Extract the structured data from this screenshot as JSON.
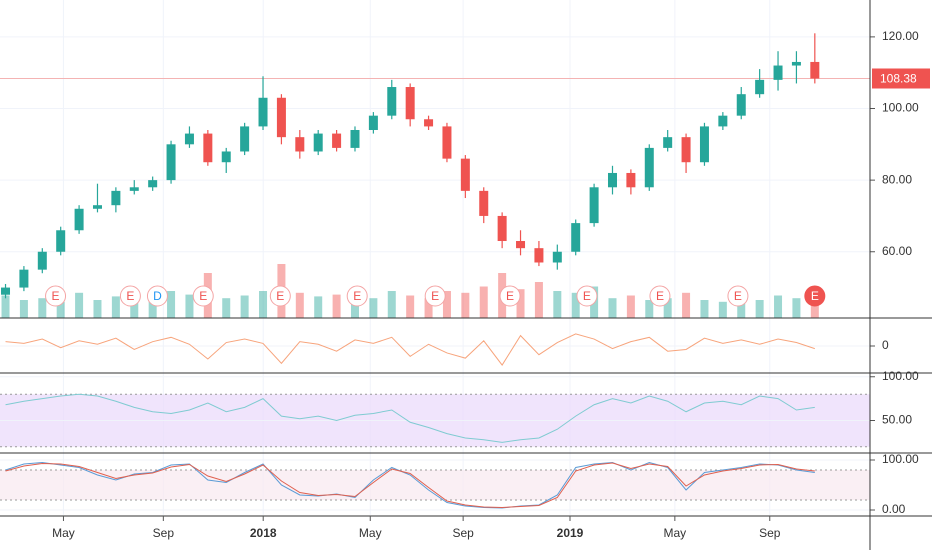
{
  "chart_data": [
    {
      "type": "candlestick",
      "xlim": [
        -0.3,
        47
      ],
      "xticks": [
        {
          "value": 3.15,
          "label": "May"
        },
        {
          "value": 8.58,
          "label": "Sep"
        },
        {
          "value": 14.01,
          "label": "2018"
        },
        {
          "value": 19.83,
          "label": "May"
        },
        {
          "value": 24.88,
          "label": "Sep"
        },
        {
          "value": 30.69,
          "label": "2019"
        },
        {
          "value": 36.39,
          "label": "May"
        },
        {
          "value": 41.55,
          "label": "Sep"
        }
      ],
      "ylim": [
        41.5,
        130.3
      ],
      "yticks": [
        {
          "value": 120,
          "label": "120.00"
        },
        {
          "value": 100,
          "label": "100.00"
        },
        {
          "value": 80,
          "label": "80.00"
        },
        {
          "value": 60,
          "label": "60.00"
        }
      ],
      "up_color": "#26a69a",
      "down_color": "#ef5350",
      "open": [
        48,
        50,
        55,
        60,
        66,
        72,
        73,
        77,
        78,
        80,
        90,
        93,
        85,
        88,
        95,
        103,
        92,
        88,
        93,
        89,
        94,
        98,
        106,
        97,
        95,
        86,
        77,
        70,
        63,
        61,
        57,
        60,
        68,
        78,
        82,
        78,
        89,
        92,
        85,
        95,
        98,
        104,
        108,
        112,
        113
      ],
      "high": [
        51,
        56,
        61,
        67,
        73,
        79,
        78,
        80,
        81,
        91,
        95,
        94,
        89,
        96,
        109,
        104,
        94,
        94,
        94,
        95,
        99,
        108,
        107,
        98,
        96,
        87,
        78,
        71,
        66,
        63,
        62,
        69,
        79,
        84,
        83,
        90,
        94,
        93,
        96,
        99,
        106,
        111,
        116,
        116,
        121
      ],
      "low": [
        47,
        49,
        54,
        59,
        65,
        71,
        71,
        76,
        77,
        79,
        89,
        84,
        82,
        87,
        94,
        90,
        86,
        87,
        88,
        88,
        93,
        97,
        95,
        94,
        85,
        75,
        68,
        61,
        59,
        56,
        55,
        59,
        67,
        76,
        76,
        77,
        88,
        82,
        84,
        94,
        97,
        103,
        105,
        107,
        107
      ],
      "close": [
        50,
        55,
        60,
        66,
        72,
        73,
        77,
        78,
        80,
        90,
        93,
        85,
        88,
        95,
        103,
        92,
        88,
        93,
        89,
        94,
        98,
        106,
        97,
        95,
        86,
        77,
        70,
        63,
        61,
        57,
        60,
        68,
        78,
        82,
        78,
        89,
        92,
        85,
        95,
        98,
        104,
        108,
        112,
        113,
        108.38
      ],
      "volume": [
        25,
        20,
        22,
        18,
        28,
        20,
        24,
        18,
        22,
        30,
        26,
        50,
        22,
        25,
        30,
        60,
        28,
        24,
        26,
        20,
        22,
        30,
        25,
        22,
        30,
        28,
        35,
        50,
        32,
        40,
        30,
        28,
        35,
        22,
        25,
        20,
        22,
        28,
        20,
        18,
        22,
        20,
        25,
        22,
        30
      ],
      "last_price": 108.38,
      "events": [
        {
          "label": "E",
          "x": 2.72
        },
        {
          "label": "E",
          "x": 6.79
        },
        {
          "label": "D",
          "x": 8.26
        },
        {
          "label": "E",
          "x": 10.75
        },
        {
          "label": "E",
          "x": 14.94
        },
        {
          "label": "E",
          "x": 19.12
        },
        {
          "label": "E",
          "x": 23.36
        },
        {
          "label": "E",
          "x": 27.43
        },
        {
          "label": "E",
          "x": 31.61
        },
        {
          "label": "E",
          "x": 35.58
        },
        {
          "label": "E",
          "x": 39.82
        },
        {
          "label": "E",
          "x": 44.0,
          "filled": true
        }
      ]
    },
    {
      "type": "line",
      "ylim": [
        -3,
        3
      ],
      "yticks": [
        0
      ],
      "series": [
        {
          "color": "#f7a47c",
          "values": [
            0.5,
            0.3,
            0.8,
            -0.2,
            0.6,
            0.2,
            0.9,
            -0.4,
            0.5,
            1.0,
            0.2,
            -1.5,
            0.4,
            0.8,
            0.3,
            -2.0,
            0.5,
            0.2,
            -0.6,
            0.7,
            0.3,
            1.0,
            -1.2,
            0.2,
            -0.8,
            -1.4,
            0.6,
            -2.2,
            1.2,
            -1.0,
            0.4,
            1.4,
            0.8,
            -0.3,
            0.5,
            1.0,
            -0.6,
            -0.4,
            0.9,
            0.3,
            0.7,
            0.2,
            0.8,
            0.4,
            -0.3
          ]
        }
      ]
    },
    {
      "type": "line",
      "ylim": [
        14,
        102
      ],
      "yticks": [
        {
          "value": 100,
          "label": "100.00"
        },
        {
          "value": 50,
          "label": "50.00"
        }
      ],
      "band": [
        20,
        80
      ],
      "band_color": "#e9d8fb",
      "series": [
        {
          "color": "#7fcbd1",
          "values": [
            68,
            72,
            75,
            78,
            80,
            78,
            72,
            65,
            60,
            58,
            62,
            70,
            60,
            65,
            75,
            55,
            52,
            55,
            50,
            56,
            58,
            62,
            48,
            42,
            35,
            30,
            28,
            25,
            28,
            30,
            40,
            55,
            68,
            75,
            70,
            78,
            72,
            60,
            70,
            72,
            68,
            78,
            75,
            62,
            65
          ]
        }
      ]
    },
    {
      "type": "line",
      "ylim": [
        -10,
        110
      ],
      "yticks": [
        {
          "value": 100,
          "label": "100.00"
        },
        {
          "value": 0,
          "label": "0.00"
        }
      ],
      "band": [
        20,
        80
      ],
      "band_color": "#f8e8ef",
      "series": [
        {
          "color": "#5b9bd5",
          "values": [
            80,
            92,
            95,
            90,
            85,
            70,
            60,
            72,
            75,
            90,
            92,
            60,
            55,
            75,
            92,
            50,
            30,
            28,
            32,
            25,
            60,
            85,
            70,
            40,
            15,
            8,
            5,
            4,
            8,
            10,
            30,
            85,
            92,
            95,
            80,
            95,
            85,
            40,
            75,
            80,
            85,
            92,
            90,
            80,
            75
          ]
        },
        {
          "color": "#e0604f",
          "values": [
            78,
            88,
            93,
            92,
            87,
            75,
            63,
            70,
            74,
            86,
            91,
            68,
            57,
            72,
            90,
            58,
            35,
            29,
            31,
            27,
            55,
            82,
            73,
            45,
            18,
            10,
            6,
            5,
            7,
            9,
            25,
            78,
            90,
            94,
            83,
            92,
            87,
            48,
            70,
            78,
            83,
            90,
            91,
            82,
            78
          ]
        }
      ]
    }
  ]
}
